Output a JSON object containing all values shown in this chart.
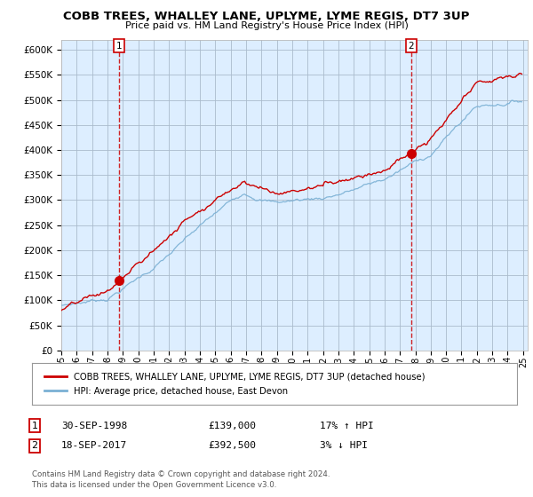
{
  "title": "COBB TREES, WHALLEY LANE, UPLYME, LYME REGIS, DT7 3UP",
  "subtitle": "Price paid vs. HM Land Registry's House Price Index (HPI)",
  "yticks": [
    0,
    50000,
    100000,
    150000,
    200000,
    250000,
    300000,
    350000,
    400000,
    450000,
    500000,
    550000,
    600000
  ],
  "sale1_year": 1998.75,
  "sale1_price": 139000,
  "sale2_year": 2017.72,
  "sale2_price": 392500,
  "line_color_red": "#cc0000",
  "line_color_blue": "#7ab0d4",
  "plot_bg_color": "#ddeeff",
  "background_color": "#ffffff",
  "grid_color": "#aabbcc",
  "legend_label_red": "COBB TREES, WHALLEY LANE, UPLYME, LYME REGIS, DT7 3UP (detached house)",
  "legend_label_blue": "HPI: Average price, detached house, East Devon",
  "footer1": "Contains HM Land Registry data © Crown copyright and database right 2024.",
  "footer2": "This data is licensed under the Open Government Licence v3.0.",
  "table_rows": [
    {
      "num": "1",
      "date": "30-SEP-1998",
      "price": "£139,000",
      "pct": "17% ↑ HPI"
    },
    {
      "num": "2",
      "date": "18-SEP-2017",
      "price": "£392,500",
      "pct": "3% ↓ HPI"
    }
  ]
}
